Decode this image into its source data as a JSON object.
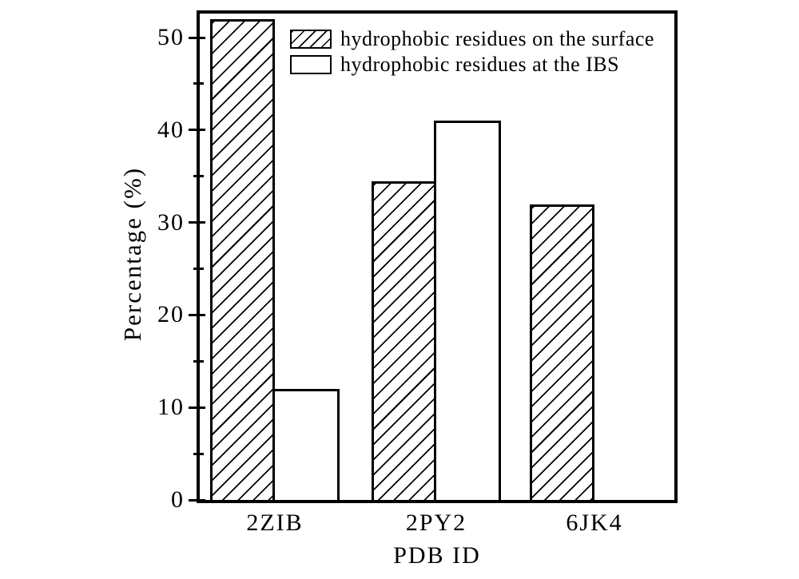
{
  "chart_data": {
    "type": "bar",
    "title": "",
    "xlabel": "PDB ID",
    "ylabel": "Percentage (%)",
    "categories": [
      "2ZIB",
      "2PY2",
      "6JK4"
    ],
    "series": [
      {
        "name": "hydrophobic residues on the surface",
        "fill": "hatched",
        "values": [
          52,
          34.5,
          32
        ]
      },
      {
        "name": "hydrophobic residues at the IBS",
        "fill": "open",
        "values": [
          12,
          41,
          null
        ]
      }
    ],
    "ylim": [
      0,
      52.6
    ],
    "yticks": [
      0,
      10,
      20,
      30,
      40,
      50
    ],
    "yticks_minor": [
      5,
      15,
      25,
      35,
      45
    ],
    "grid": false,
    "legend_position": "upper-left-inside",
    "colors": {
      "foreground": "#000000",
      "background": "#ffffff",
      "bar_fill": "#ffffff",
      "hatch": "#000000"
    }
  }
}
